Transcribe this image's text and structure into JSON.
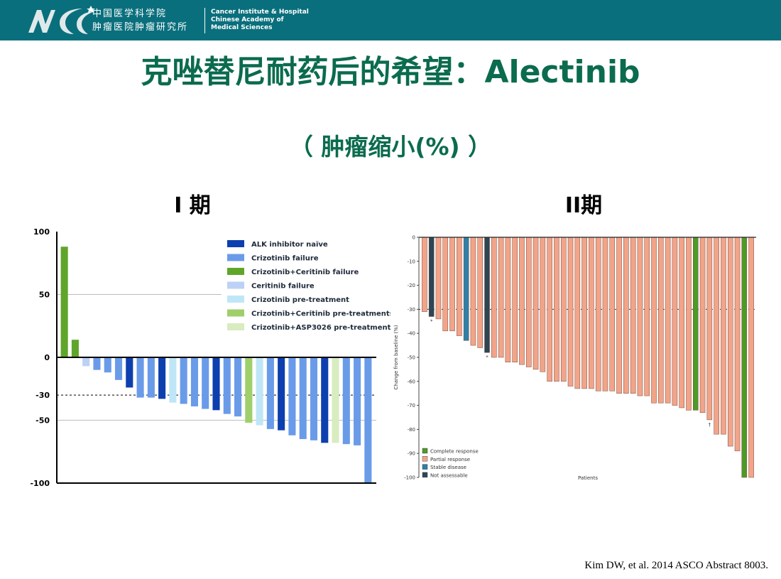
{
  "header": {
    "logo_text": "NCC",
    "org_cn_line1": "中国医学科学院",
    "org_cn_line2": "肿瘤医院肿瘤研究所",
    "org_en_line1": "Cancer Institute & Hospital",
    "org_en_line2": "Chinese Academy of",
    "org_en_line3": "Medical Sciences",
    "bg_color": "#0a6f7c"
  },
  "title": "克唑替尼耐药后的希望：Alectinib",
  "subtitle": "（ 肿瘤缩小(%) ）",
  "phase1_label": "I 期",
  "phase2_label": "II期",
  "citation": "Kim DW, et al. 2014 ASCO Abstract 8003.",
  "chart_data": [
    {
      "type": "bar",
      "panel": "phase1",
      "ylim": [
        -100,
        100
      ],
      "yticks": [
        "100",
        "50",
        "0",
        "-30",
        "-50",
        "-100"
      ],
      "ytick_values": [
        100,
        50,
        0,
        -30,
        -50,
        -100
      ],
      "dashed_reference": -30,
      "gridlines": [
        50,
        -50
      ],
      "legend_position": "top-right",
      "legend": [
        {
          "key": "naive",
          "label": "ALK inhibitor naïve",
          "color": "#0d3fae"
        },
        {
          "key": "crizf",
          "label": "Crizotinib failure",
          "color": "#6a9be9"
        },
        {
          "key": "ccf",
          "label": "Crizotinib+Ceritinib failure",
          "color": "#5fa52a"
        },
        {
          "key": "cerf",
          "label": "Ceritinib failure",
          "color": "#bcd1f4"
        },
        {
          "key": "crizpre",
          "label": "Crizotinib pre-treatment",
          "color": "#bfe6f7"
        },
        {
          "key": "ccpre",
          "label": "Crizotinib+Ceritinib pre-treatments",
          "color": "#9fcf6a"
        },
        {
          "key": "asppre",
          "label": "Crizotinib+ASP3026 pre-treatments",
          "color": "#d8ecc0"
        }
      ],
      "bars": [
        {
          "v": 88,
          "g": "ccf"
        },
        {
          "v": 14,
          "g": "ccf"
        },
        {
          "v": -7,
          "g": "cerf"
        },
        {
          "v": -10,
          "g": "crizf"
        },
        {
          "v": -12,
          "g": "crizf"
        },
        {
          "v": -18,
          "g": "crizf"
        },
        {
          "v": -24,
          "g": "naive"
        },
        {
          "v": -32,
          "g": "crizf"
        },
        {
          "v": -32,
          "g": "crizf"
        },
        {
          "v": -33,
          "g": "naive"
        },
        {
          "v": -36,
          "g": "crizpre"
        },
        {
          "v": -37,
          "g": "crizf"
        },
        {
          "v": -39,
          "g": "crizf"
        },
        {
          "v": -41,
          "g": "crizf"
        },
        {
          "v": -42,
          "g": "naive"
        },
        {
          "v": -45,
          "g": "crizf"
        },
        {
          "v": -47,
          "g": "crizf"
        },
        {
          "v": -52,
          "g": "ccpre"
        },
        {
          "v": -54,
          "g": "crizpre"
        },
        {
          "v": -57,
          "g": "crizf"
        },
        {
          "v": -58,
          "g": "naive"
        },
        {
          "v": -62,
          "g": "crizf"
        },
        {
          "v": -65,
          "g": "crizf"
        },
        {
          "v": -66,
          "g": "crizf"
        },
        {
          "v": -68,
          "g": "naive"
        },
        {
          "v": -68,
          "g": "asppre"
        },
        {
          "v": -69,
          "g": "crizf"
        },
        {
          "v": -70,
          "g": "crizf"
        },
        {
          "v": -100,
          "g": "crizf"
        }
      ]
    },
    {
      "type": "bar",
      "panel": "phase2",
      "ylim": [
        -100,
        0
      ],
      "ylabel": "Change from baseline (%)",
      "xlabel": "Patients",
      "yticks": [
        "0",
        "-10",
        "-20",
        "-30",
        "-40",
        "-50",
        "-60",
        "-70",
        "-80",
        "-90",
        "-100"
      ],
      "ytick_values": [
        0,
        -10,
        -20,
        -30,
        -40,
        -50,
        -60,
        -70,
        -80,
        -90,
        -100
      ],
      "dashed_reference": -30,
      "legend_position": "bottom-left",
      "legend": [
        {
          "key": "cr",
          "label": "Complete response",
          "color": "#4e9a28"
        },
        {
          "key": "pr",
          "label": "Partial response",
          "color": "#f2a489"
        },
        {
          "key": "sd",
          "label": "Stable disease",
          "color": "#2f7fa6"
        },
        {
          "key": "na",
          "label": "Not assessable",
          "color": "#2c4656"
        }
      ],
      "annotations": [
        {
          "bar": 1,
          "text": "*"
        },
        {
          "bar": 9,
          "text": "*"
        },
        {
          "bar": 41,
          "text": "†"
        }
      ],
      "bars": [
        {
          "v": -31,
          "g": "pr"
        },
        {
          "v": -33,
          "g": "na"
        },
        {
          "v": -34,
          "g": "pr"
        },
        {
          "v": -39,
          "g": "pr"
        },
        {
          "v": -39,
          "g": "pr"
        },
        {
          "v": -41,
          "g": "pr"
        },
        {
          "v": -43,
          "g": "sd"
        },
        {
          "v": -45,
          "g": "pr"
        },
        {
          "v": -46,
          "g": "pr"
        },
        {
          "v": -48,
          "g": "na"
        },
        {
          "v": -50,
          "g": "pr"
        },
        {
          "v": -50,
          "g": "pr"
        },
        {
          "v": -52,
          "g": "pr"
        },
        {
          "v": -52,
          "g": "pr"
        },
        {
          "v": -53,
          "g": "pr"
        },
        {
          "v": -54,
          "g": "pr"
        },
        {
          "v": -55,
          "g": "pr"
        },
        {
          "v": -56,
          "g": "pr"
        },
        {
          "v": -60,
          "g": "pr"
        },
        {
          "v": -60,
          "g": "pr"
        },
        {
          "v": -60,
          "g": "pr"
        },
        {
          "v": -62,
          "g": "pr"
        },
        {
          "v": -63,
          "g": "pr"
        },
        {
          "v": -63,
          "g": "pr"
        },
        {
          "v": -63,
          "g": "pr"
        },
        {
          "v": -64,
          "g": "pr"
        },
        {
          "v": -64,
          "g": "pr"
        },
        {
          "v": -64,
          "g": "pr"
        },
        {
          "v": -65,
          "g": "pr"
        },
        {
          "v": -65,
          "g": "pr"
        },
        {
          "v": -65,
          "g": "pr"
        },
        {
          "v": -66,
          "g": "pr"
        },
        {
          "v": -66,
          "g": "pr"
        },
        {
          "v": -69,
          "g": "pr"
        },
        {
          "v": -69,
          "g": "pr"
        },
        {
          "v": -69,
          "g": "pr"
        },
        {
          "v": -70,
          "g": "pr"
        },
        {
          "v": -71,
          "g": "pr"
        },
        {
          "v": -72,
          "g": "pr"
        },
        {
          "v": -72,
          "g": "cr"
        },
        {
          "v": -73,
          "g": "pr"
        },
        {
          "v": -76,
          "g": "pr"
        },
        {
          "v": -82,
          "g": "pr"
        },
        {
          "v": -82,
          "g": "pr"
        },
        {
          "v": -87,
          "g": "pr"
        },
        {
          "v": -89,
          "g": "pr"
        },
        {
          "v": -100,
          "g": "cr"
        },
        {
          "v": -100,
          "g": "pr"
        }
      ]
    }
  ]
}
